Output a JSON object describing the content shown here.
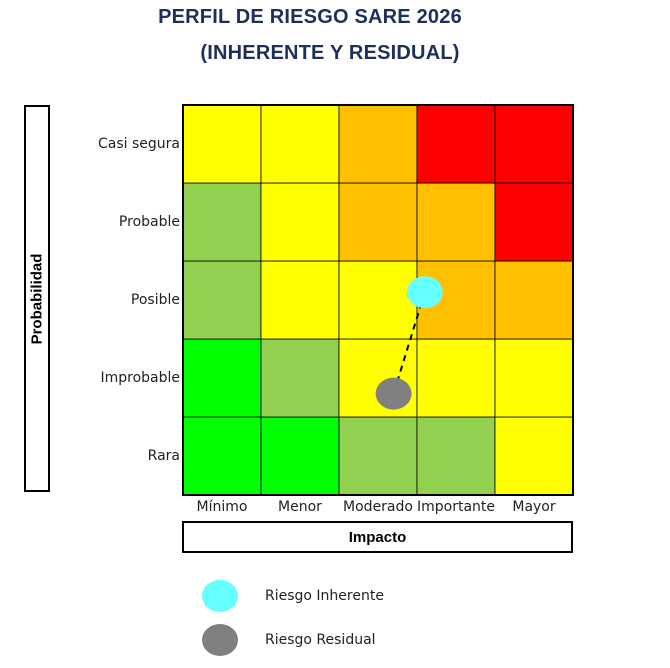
{
  "chart_data": {
    "type": "heatmap",
    "title": "PERFIL DE RIESGO SARE 2026",
    "subtitle": "(INHERENTE Y RESIDUAL)",
    "xlabel": "Impacto",
    "ylabel": "Probabilidad",
    "x_categories": [
      "Mínimo",
      "Menor",
      "Moderado",
      "Importante",
      "Mayor"
    ],
    "y_categories": [
      "Rara",
      "Improbable",
      "Posible",
      "Probable",
      "Casi segura"
    ],
    "cells": [
      [
        "#00ff00",
        "#00ff00",
        "#92d050",
        "#92d050",
        "#ffff00"
      ],
      [
        "#00ff00",
        "#92d050",
        "#ffff00",
        "#ffff00",
        "#ffff00"
      ],
      [
        "#92d050",
        "#ffff00",
        "#ffff00",
        "#ffc000",
        "#ffc000"
      ],
      [
        "#92d050",
        "#ffff00",
        "#ffc000",
        "#ffc000",
        "#ff0000"
      ],
      [
        "#ffff00",
        "#ffff00",
        "#ffc000",
        "#ff0000",
        "#ff0000"
      ]
    ],
    "points": [
      {
        "name": "Riesgo Inherente",
        "x": 2.6,
        "y": 2.1,
        "color": "#66ffff"
      },
      {
        "name": "Riesgo Residual",
        "x": 2.2,
        "y": 0.8,
        "color": "#808080"
      }
    ],
    "legend": [
      {
        "label": "Riesgo Inherente",
        "color": "#66ffff"
      },
      {
        "label": "Riesgo Residual",
        "color": "#808080"
      }
    ],
    "legend_position": "bottom"
  }
}
